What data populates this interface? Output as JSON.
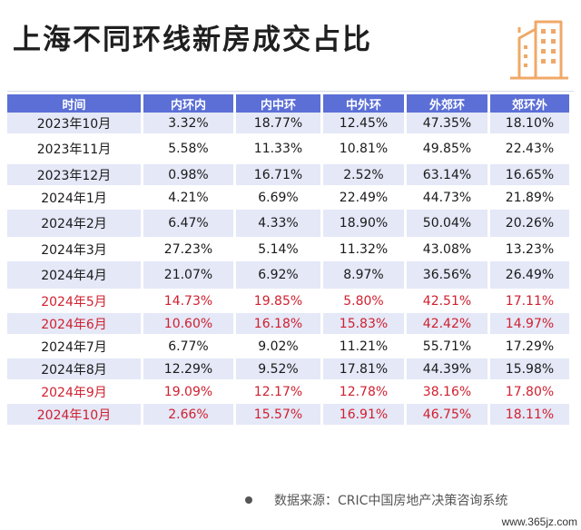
{
  "title": "上海不同环线新房成交占比",
  "table": {
    "headers": [
      "时间",
      "内环内",
      "内中环",
      "中外环",
      "外郊环",
      "郊环外"
    ],
    "rows": [
      {
        "time": "2023年10月",
        "v": [
          "3.32%",
          "18.77%",
          "12.45%",
          "47.35%",
          "18.10%"
        ],
        "highlight": false
      },
      {
        "time": "2023年11月",
        "v": [
          "5.58%",
          "11.33%",
          "10.81%",
          "49.85%",
          "22.43%"
        ],
        "highlight": false
      },
      {
        "time": "2023年12月",
        "v": [
          "0.98%",
          "16.71%",
          "2.52%",
          "63.14%",
          "16.65%"
        ],
        "highlight": false
      },
      {
        "time": "2024年1月",
        "v": [
          "4.21%",
          "6.69%",
          "22.49%",
          "44.73%",
          "21.89%"
        ],
        "highlight": false
      },
      {
        "time": "2024年2月",
        "v": [
          "6.47%",
          "4.33%",
          "18.90%",
          "50.04%",
          "20.26%"
        ],
        "highlight": false
      },
      {
        "time": "2024年3月",
        "v": [
          "27.23%",
          "5.14%",
          "11.32%",
          "43.08%",
          "13.23%"
        ],
        "highlight": false
      },
      {
        "time": "2024年4月",
        "v": [
          "21.07%",
          "6.92%",
          "8.97%",
          "36.56%",
          "26.49%"
        ],
        "highlight": false
      },
      {
        "time": "2024年5月",
        "v": [
          "14.73%",
          "19.85%",
          "5.80%",
          "42.51%",
          "17.11%"
        ],
        "highlight": true
      },
      {
        "time": "2024年6月",
        "v": [
          "10.60%",
          "16.18%",
          "15.83%",
          "42.42%",
          "14.97%"
        ],
        "highlight": true
      },
      {
        "time": "2024年7月",
        "v": [
          "6.77%",
          "9.02%",
          "11.21%",
          "55.71%",
          "17.29%"
        ],
        "highlight": false
      },
      {
        "time": "2024年8月",
        "v": [
          "12.29%",
          "9.52%",
          "17.81%",
          "44.39%",
          "15.98%"
        ],
        "highlight": false
      },
      {
        "time": "2024年9月",
        "v": [
          "19.09%",
          "12.17%",
          "12.78%",
          "38.16%",
          "17.80%"
        ],
        "highlight": true
      },
      {
        "time": "2024年10月",
        "v": [
          "2.66%",
          "15.57%",
          "16.91%",
          "46.75%",
          "18.11%"
        ],
        "highlight": true
      }
    ]
  },
  "footer": {
    "source": "数据来源：CRIC中国房地产决策咨询系统"
  },
  "watermark": "www.365jz.com",
  "colors": {
    "header_bg": "#5b6fd6",
    "row_shade": "#e4e8f7",
    "highlight_text": "#d1202f",
    "icon": "#f0a868"
  },
  "icons": [
    "building-icon"
  ]
}
